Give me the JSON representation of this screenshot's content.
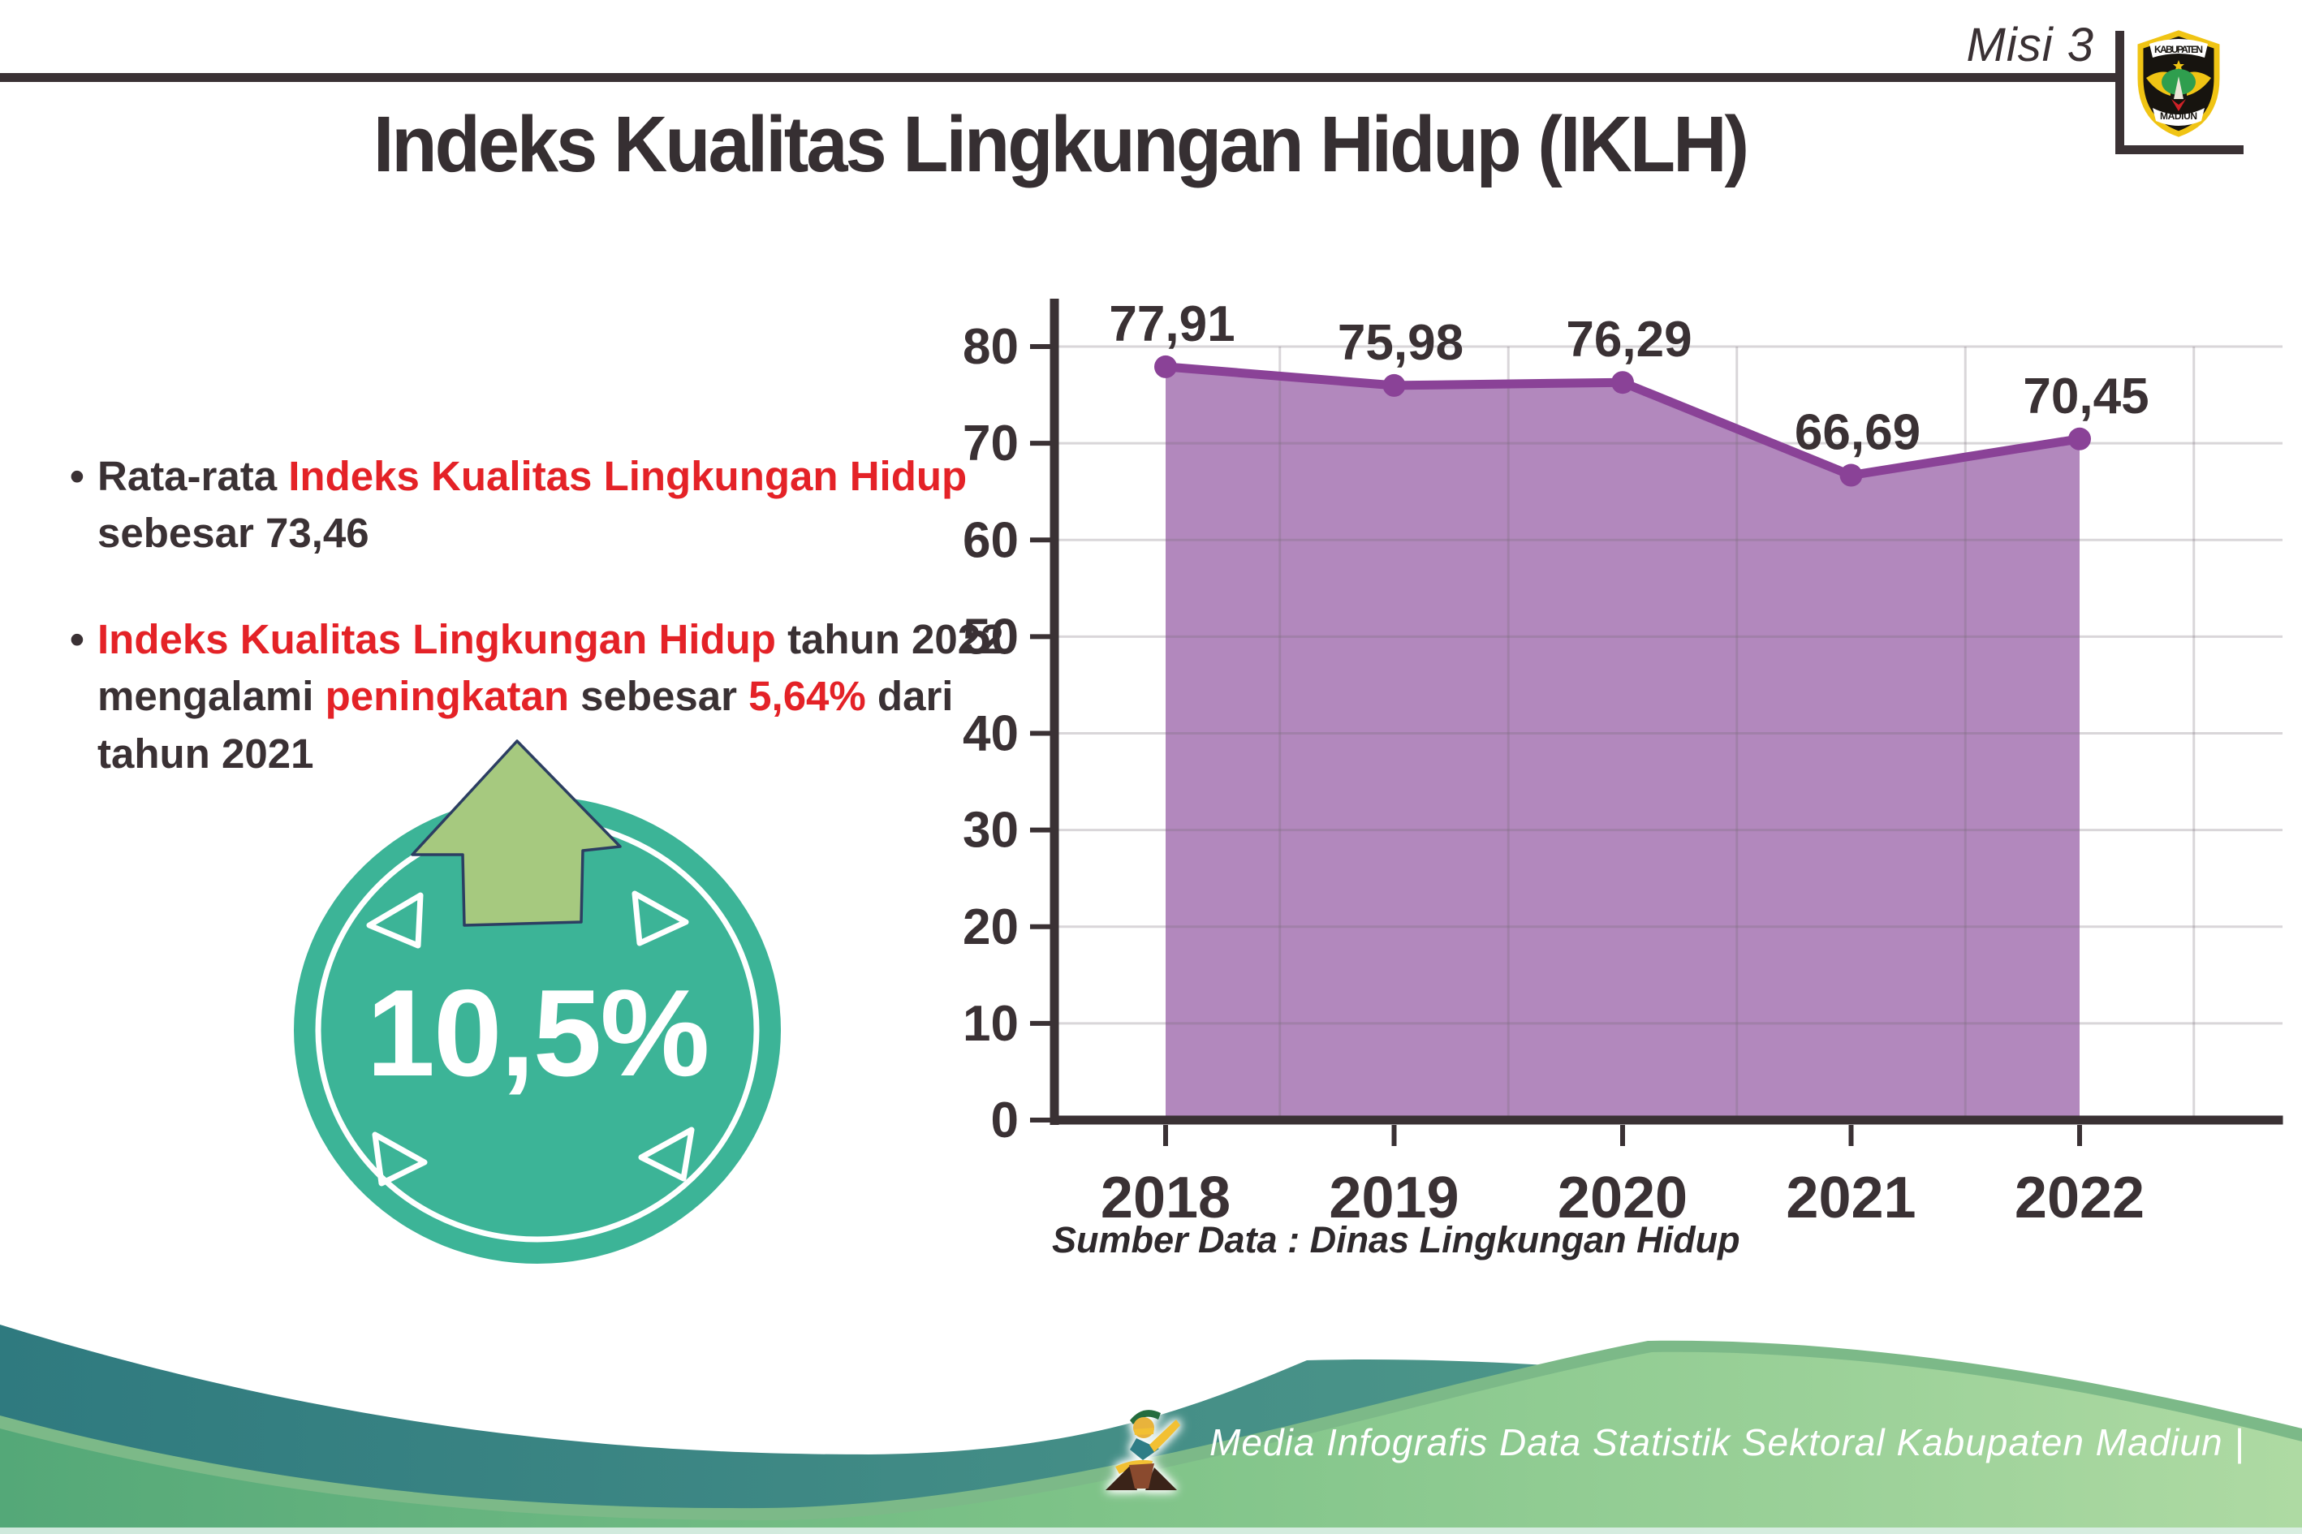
{
  "header": {
    "misi_label": "Misi 3",
    "logo": {
      "top_text": "KABUPATEN",
      "bottom_text": "MADIUN"
    }
  },
  "title": "Indeks Kualitas Lingkungan Hidup (IKLH)",
  "bullets": {
    "marker": "•",
    "items": [
      {
        "lines": [
          [
            {
              "text": "Rata-rata ",
              "color": "dark"
            },
            {
              "text": "Indeks Kualitas Lingkungan Hidup",
              "color": "red"
            }
          ],
          [
            {
              "text": "sebesar 73,46",
              "color": "dark"
            }
          ]
        ]
      },
      {
        "lines": [
          [
            {
              "text": "Indeks Kualitas Lingkungan Hidup",
              "color": "red"
            },
            {
              "text": " tahun 2022",
              "color": "dark"
            }
          ],
          [
            {
              "text": "mengalami ",
              "color": "dark"
            },
            {
              "text": "peningkatan",
              "color": "red"
            },
            {
              "text": " sebesar ",
              "color": "dark"
            },
            {
              "text": "5,64%",
              "color": "red"
            },
            {
              "text": " dari",
              "color": "dark"
            }
          ],
          [
            {
              "text": "tahun 2021",
              "color": "dark"
            }
          ]
        ]
      }
    ]
  },
  "badge": {
    "value": "10,5%",
    "circle_color": "#3cb497",
    "arrow_color": "#a6c97f",
    "arrow_outline": "#2c3e62"
  },
  "chart_data": {
    "type": "area",
    "title": "",
    "categories": [
      "2018",
      "2019",
      "2020",
      "2021",
      "2022"
    ],
    "values": [
      77.91,
      75.98,
      76.29,
      66.69,
      70.45
    ],
    "value_labels": [
      "77,91",
      "75,98",
      "76,29",
      "66,69",
      "70,45"
    ],
    "xlabel": "",
    "ylabel": "",
    "ylim": [
      0,
      85
    ],
    "y_ticks": [
      0,
      10,
      20,
      30,
      40,
      50,
      60,
      70,
      80
    ],
    "grid": true,
    "legend": false,
    "area_color": "#b288bd",
    "line_color": "#8a4297",
    "dot_color": "#8a4297",
    "axis_color": "#3a3134",
    "label_color": "#3a3134",
    "gridline_color": "rgba(118,106,120,0.28)"
  },
  "source_note": "Sumber Data : Dinas Lingkungan Hidup",
  "footer": {
    "text": "Media Infografis Data Statistik Sektoral Kabupaten Madiun |"
  },
  "colors": {
    "text_dark": "#3a3134",
    "text_red": "#e42227",
    "footer_teal_1": "#2f7a7f",
    "footer_teal_2": "#5aa38e",
    "footer_green_1": "#54a878",
    "footer_green_2": "#aedaa3",
    "footer_edge_green": "#7cb988"
  }
}
